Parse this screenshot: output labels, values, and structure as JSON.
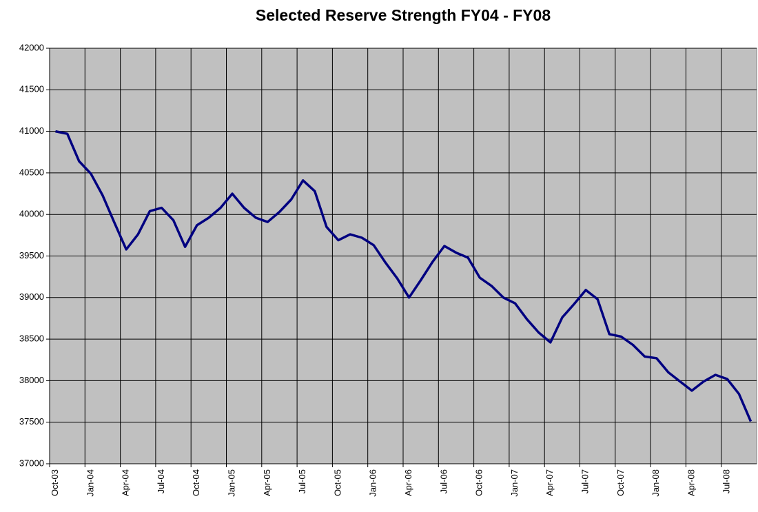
{
  "chart_data": {
    "type": "line",
    "title": "Selected Reserve Strength FY04 - FY08",
    "categories": [
      "Oct-03",
      null,
      null,
      "Jan-04",
      null,
      null,
      "Apr-04",
      null,
      null,
      "Jul-04",
      null,
      null,
      "Oct-04",
      null,
      null,
      "Jan-05",
      null,
      null,
      "Apr-05",
      null,
      null,
      "Jul-05",
      null,
      null,
      "Oct-05",
      null,
      null,
      "Jan-06",
      null,
      null,
      "Apr-06",
      null,
      null,
      "Jul-06",
      null,
      null,
      "Oct-06",
      null,
      null,
      "Jan-07",
      null,
      null,
      "Apr-07",
      null,
      null,
      "Jul-07",
      null,
      null,
      "Oct-07",
      null,
      null,
      "Jan-08",
      null,
      null,
      "Apr-08",
      null,
      null,
      "Jul-08",
      null,
      null
    ],
    "series": [
      {
        "color": "#000080",
        "values": [
          41000,
          40970,
          40640,
          40490,
          40230,
          39900,
          39580,
          39760,
          40040,
          40080,
          39930,
          39610,
          39870,
          39960,
          40080,
          40250,
          40080,
          39960,
          39910,
          40030,
          40180,
          40410,
          40280,
          39850,
          39690,
          39760,
          39720,
          39630,
          39420,
          39230,
          39000,
          39210,
          39430,
          39620,
          39540,
          39480,
          39240,
          39140,
          39000,
          38930,
          38740,
          38580,
          38460,
          38760,
          38920,
          39090,
          38980,
          38560,
          38530,
          38430,
          38290,
          38270,
          38100,
          37990,
          37880,
          37990,
          38070,
          38020,
          37840,
          37510
        ]
      }
    ],
    "ylim": [
      37000,
      42000
    ],
    "yticks": [
      37000,
      37500,
      38000,
      38500,
      39000,
      39500,
      40000,
      40500,
      41000,
      41500,
      42000
    ],
    "grid": true,
    "background": "#c0c0c0"
  }
}
